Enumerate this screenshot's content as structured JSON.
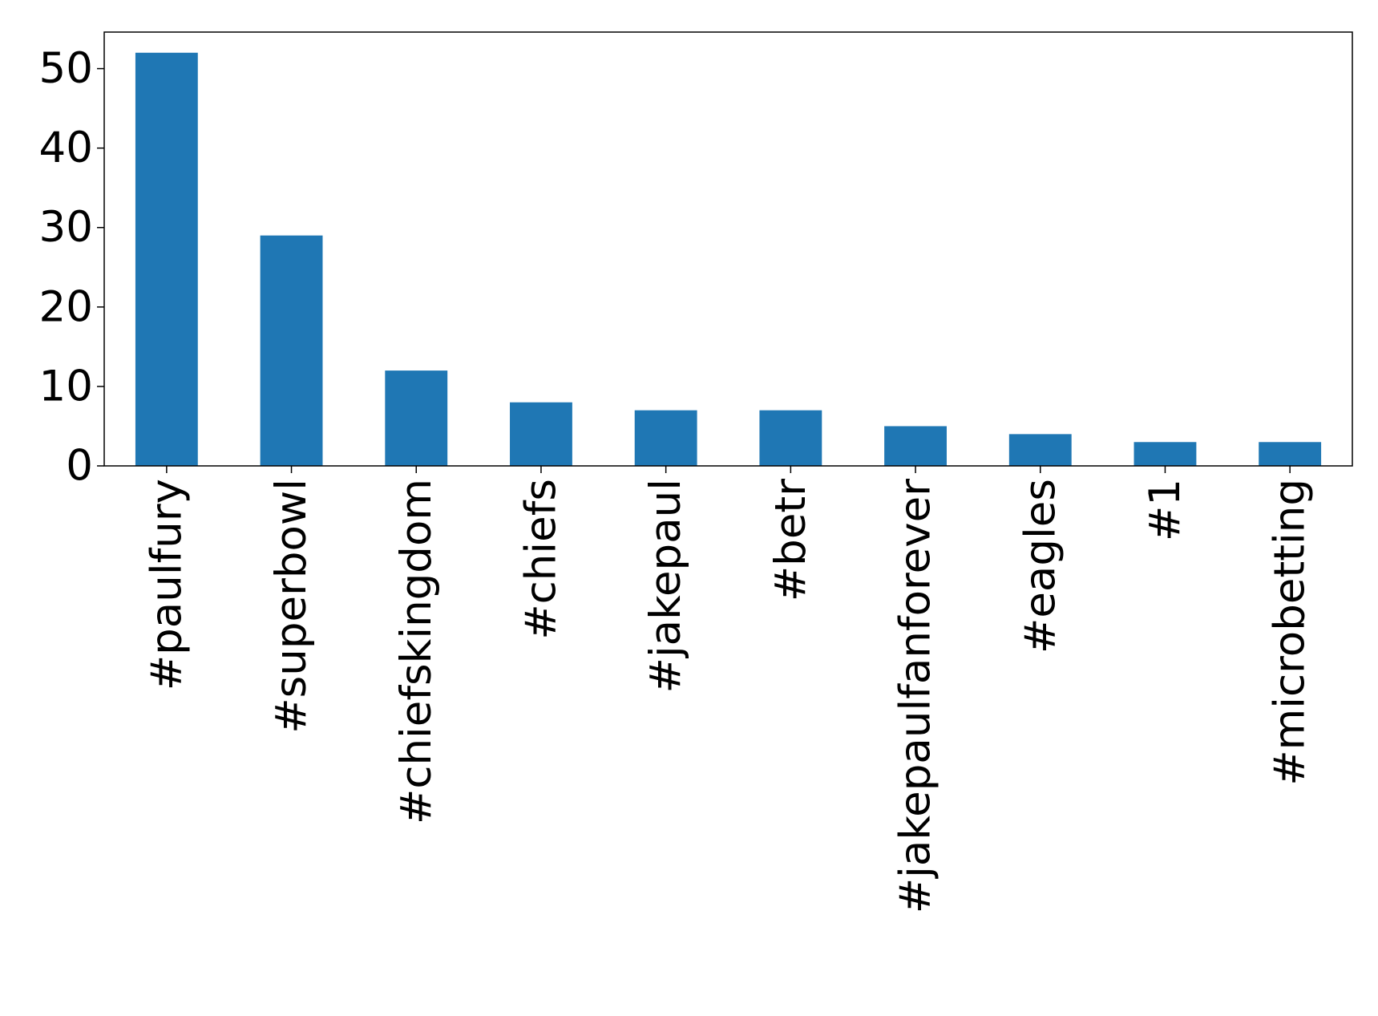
{
  "chart_data": {
    "type": "bar",
    "categories": [
      "#paulfury",
      "#superbowl",
      "#chiefskingdom",
      "#chiefs",
      "#jakepaul",
      "#betr",
      "#jakepaulfanforever",
      "#eagles",
      "#1",
      "#microbetting"
    ],
    "values": [
      52,
      29,
      12,
      8,
      7,
      7,
      5,
      4,
      3,
      3
    ],
    "color": "#1f77b4",
    "ylim": [
      0,
      54.6
    ],
    "yticks": [
      0,
      10,
      20,
      30,
      40,
      50
    ],
    "grid": false
  }
}
